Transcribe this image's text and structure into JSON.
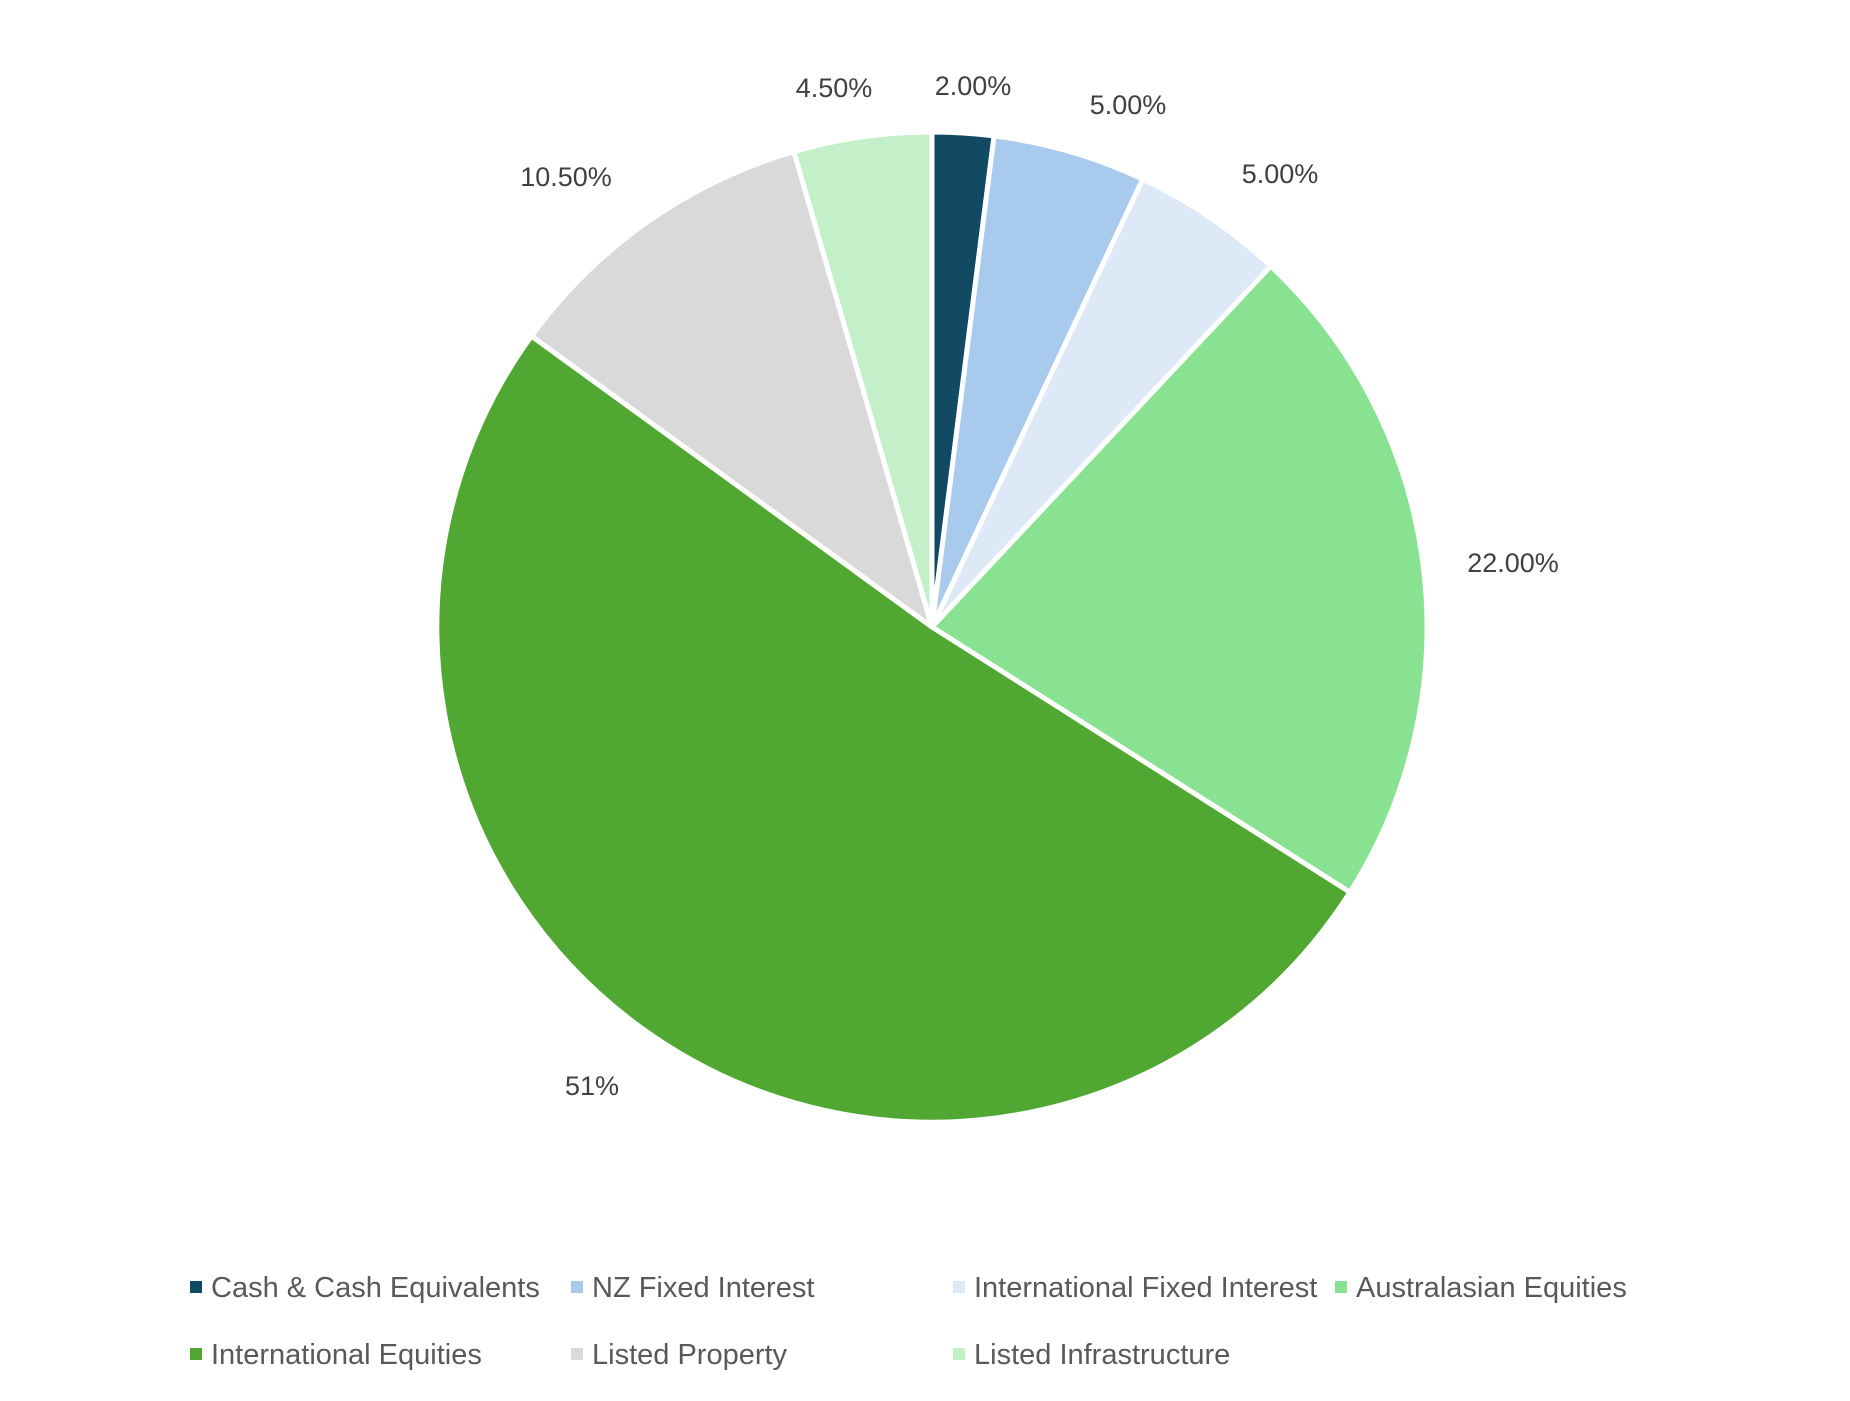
{
  "chart_data": {
    "type": "pie",
    "title": "",
    "start_angle_deg": 0,
    "direction": "clockwise",
    "legend_position": "bottom",
    "slices": [
      {
        "name": "Cash & Cash Equivalents",
        "value": 2.0,
        "label": "2.00%",
        "color": "#124963"
      },
      {
        "name": "NZ Fixed Interest",
        "value": 5.0,
        "label": "5.00%",
        "color": "#a8caec"
      },
      {
        "name": "International Fixed Interest",
        "value": 5.0,
        "label": "5.00%",
        "color": "#dde9f7"
      },
      {
        "name": "Australasian Equities",
        "value": 22.0,
        "label": "22.00%",
        "color": "#89e291"
      },
      {
        "name": "International Equities",
        "value": 51.0,
        "label": "51%",
        "color": "#50a731"
      },
      {
        "name": "Listed Property",
        "value": 10.5,
        "label": "10.50%",
        "color": "#d9d9d9"
      },
      {
        "name": "Listed Infrastructure",
        "value": 4.5,
        "label": "4.50%",
        "color": "#c3f0c9"
      }
    ]
  }
}
